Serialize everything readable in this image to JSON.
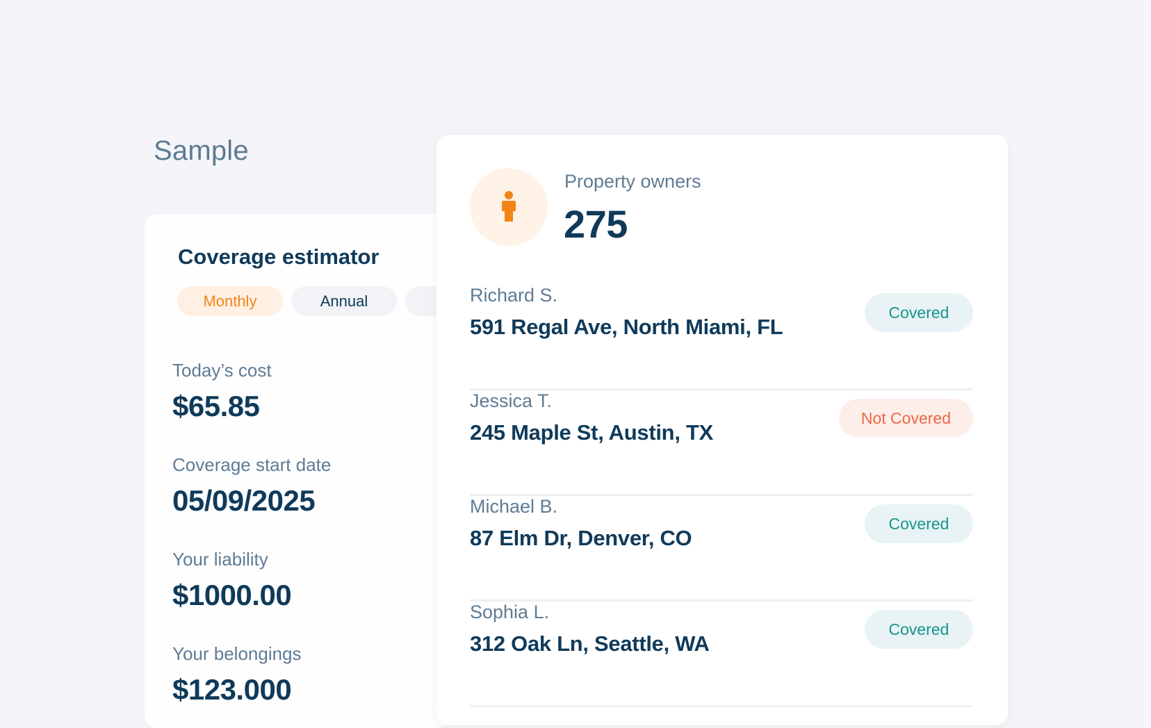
{
  "page": {
    "heading": "Sample"
  },
  "estimator": {
    "title": "Coverage estimator",
    "tabs": [
      {
        "label": "Monthly",
        "active": true
      },
      {
        "label": "Annual",
        "active": false
      },
      {
        "label": "",
        "active": false
      }
    ],
    "fields": [
      {
        "label": "Today’s cost",
        "value": "$65.85"
      },
      {
        "label": "Coverage start date",
        "value": "05/09/2025"
      },
      {
        "label": "Your liability",
        "value": "$1000.00"
      },
      {
        "label": "Your belongings",
        "value": "$123.000"
      }
    ]
  },
  "owners": {
    "icon": "person-icon",
    "label": "Property owners",
    "count": "275",
    "list": [
      {
        "name": "Richard S.",
        "address": "591 Regal Ave, North Miami, FL",
        "status": "Covered"
      },
      {
        "name": "Jessica T.",
        "address": "245 Maple St, Austin, TX",
        "status": "Not Covered"
      },
      {
        "name": "Michael B.",
        "address": "87 Elm Dr, Denver, CO",
        "status": "Covered"
      },
      {
        "name": "Sophia L.",
        "address": "312 Oak Ln, Seattle, WA",
        "status": "Covered"
      }
    ]
  },
  "colors": {
    "accent_orange": "#f28518",
    "navy": "#0f3a5a",
    "covered_text": "#16958a",
    "not_covered_text": "#ee6843"
  }
}
